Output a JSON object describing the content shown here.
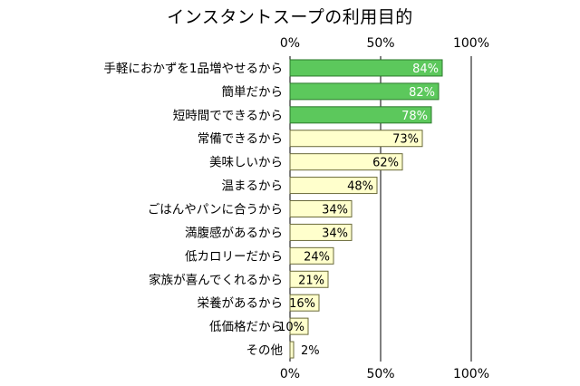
{
  "chart_data": {
    "type": "bar",
    "orientation": "horizontal",
    "title": "インスタントスープの利用目的",
    "categories": [
      "手軽におかずを1品増やせるから",
      "簡単だから",
      "短時間でできるから",
      "常備できるから",
      "美味しいから",
      "温まるから",
      "ごはんやパンに合うから",
      "満腹感があるから",
      "低カロリーだから",
      "家族が喜んでくれるから",
      "栄養があるから",
      "低価格だから",
      "その他"
    ],
    "values": [
      84,
      82,
      78,
      73,
      62,
      48,
      34,
      34,
      24,
      21,
      16,
      10,
      2
    ],
    "value_labels": [
      "84%",
      "82%",
      "78%",
      "73%",
      "62%",
      "48%",
      "34%",
      "34%",
      "24%",
      "21%",
      "16%",
      "10%",
      "2%"
    ],
    "highlighted_count": 3,
    "xlim": [
      0,
      100
    ],
    "xticks": [
      "0%",
      "50%",
      "100%"
    ],
    "tick_positions_top_and_bottom": true,
    "grid": true,
    "colors": {
      "highlight_fill": "#5cc85c",
      "highlight_stroke": "#2d7a2d",
      "normal_fill": "#ffffcc",
      "normal_stroke": "#6a6a3a",
      "axis": "#000000",
      "highlight_label": "#ffffff",
      "normal_label": "#000000"
    }
  }
}
